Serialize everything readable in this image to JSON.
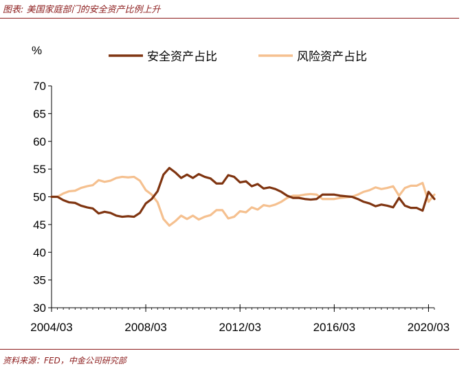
{
  "figure": {
    "title": "图表: 美国家庭部门的安全资产比例上升",
    "source": "资料来源：FED，中金公司研究部"
  },
  "chart_data": {
    "type": "line",
    "title": "图表: 美国家庭部门的安全资产比例上升",
    "ylabel": "%",
    "xlabel": "",
    "ylim": [
      30,
      70
    ],
    "yticks": [
      30,
      35,
      40,
      45,
      50,
      55,
      60,
      65,
      70
    ],
    "xtick_labels": [
      "2004/03",
      "2008/03",
      "2012/03",
      "2016/03",
      "2020/03"
    ],
    "xtick_positions": [
      2004.25,
      2008.25,
      2012.25,
      2016.25,
      2020.25
    ],
    "xlim": [
      2004.25,
      2020.5
    ],
    "legend_position": "top",
    "grid": false,
    "x": [
      2004.25,
      2004.5,
      2004.75,
      2005.0,
      2005.25,
      2005.5,
      2005.75,
      2006.0,
      2006.25,
      2006.5,
      2006.75,
      2007.0,
      2007.25,
      2007.5,
      2007.75,
      2008.0,
      2008.25,
      2008.5,
      2008.75,
      2009.0,
      2009.25,
      2009.5,
      2009.75,
      2010.0,
      2010.25,
      2010.5,
      2010.75,
      2011.0,
      2011.25,
      2011.5,
      2011.75,
      2012.0,
      2012.25,
      2012.5,
      2012.75,
      2013.0,
      2013.25,
      2013.5,
      2013.75,
      2014.0,
      2014.25,
      2014.5,
      2014.75,
      2015.0,
      2015.25,
      2015.5,
      2015.75,
      2016.0,
      2016.25,
      2016.5,
      2016.75,
      2017.0,
      2017.25,
      2017.5,
      2017.75,
      2018.0,
      2018.25,
      2018.5,
      2018.75,
      2019.0,
      2019.25,
      2019.5,
      2019.75,
      2020.0,
      2020.25,
      2020.5
    ],
    "series": [
      {
        "name": "安全资产占比",
        "color": "#7f3410",
        "values": [
          50.0,
          50.0,
          49.4,
          49.0,
          48.9,
          48.4,
          48.1,
          47.9,
          47.0,
          47.3,
          47.1,
          46.6,
          46.4,
          46.5,
          46.4,
          47.1,
          48.8,
          49.6,
          51.0,
          54.0,
          55.2,
          54.4,
          53.4,
          54.0,
          53.4,
          54.1,
          53.6,
          53.3,
          52.4,
          52.4,
          53.9,
          53.6,
          52.6,
          52.8,
          51.9,
          52.3,
          51.5,
          51.7,
          51.4,
          50.9,
          50.2,
          49.8,
          49.8,
          49.6,
          49.5,
          49.6,
          50.4,
          50.4,
          50.4,
          50.2,
          50.1,
          50.0,
          49.6,
          49.1,
          48.8,
          48.3,
          48.6,
          48.4,
          48.1,
          49.8,
          48.4,
          48.0,
          48.0,
          47.5,
          50.9,
          49.6
        ]
      },
      {
        "name": "风险资产占比",
        "color": "#f5c08f",
        "values": [
          50.0,
          50.0,
          50.6,
          51.0,
          51.1,
          51.6,
          51.9,
          52.1,
          53.0,
          52.7,
          52.9,
          53.4,
          53.6,
          53.5,
          53.6,
          52.9,
          51.2,
          50.4,
          49.0,
          46.0,
          44.8,
          45.6,
          46.6,
          46.0,
          46.6,
          45.9,
          46.4,
          46.7,
          47.6,
          47.6,
          46.1,
          46.4,
          47.4,
          47.2,
          48.1,
          47.7,
          48.5,
          48.3,
          48.6,
          49.1,
          49.8,
          50.2,
          50.2,
          50.4,
          50.5,
          50.4,
          49.6,
          49.6,
          49.6,
          49.8,
          49.9,
          50.0,
          50.4,
          50.9,
          51.2,
          51.7,
          51.4,
          51.6,
          51.9,
          50.2,
          51.6,
          52.0,
          52.0,
          52.5,
          49.1,
          50.4
        ]
      }
    ]
  }
}
